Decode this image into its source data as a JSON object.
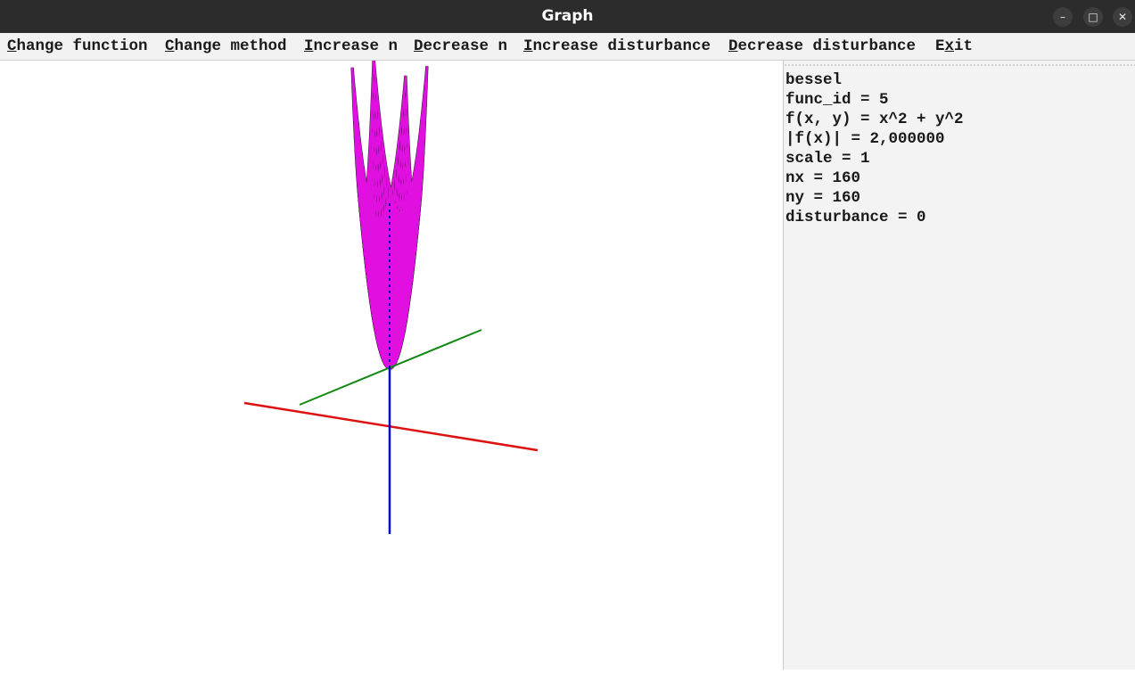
{
  "window": {
    "title": "Graph",
    "controls": [
      "minimize",
      "maximize",
      "close"
    ]
  },
  "menu": {
    "items": [
      {
        "mnemonic": "C",
        "rest": "hange function"
      },
      {
        "mnemonic": "C",
        "rest": "hange method"
      },
      {
        "mnemonic": "I",
        "rest": "ncrease n"
      },
      {
        "mnemonic": "D",
        "rest": "ecrease n"
      },
      {
        "mnemonic": "I",
        "rest": "ncrease disturbance"
      },
      {
        "mnemonic": "D",
        "rest": "ecrease disturbance"
      },
      {
        "prefix": "E",
        "mnemonic": "x",
        "rest": "it"
      }
    ]
  },
  "info": {
    "lines": [
      "bessel",
      "func_id = 5",
      "f(x, y) = x^2 + y^2",
      "|f(x)| = 2,000000",
      "scale = 1",
      "nx = 160",
      "ny = 160",
      "disturbance = 0"
    ]
  },
  "colors": {
    "surface_fill": "#e010e0",
    "surface_edge": "#1a0a1a",
    "axis_x": "#dd1111",
    "axis_y": "#118811",
    "axis_z": "#0000cc",
    "titlebar": "#2c2c2c",
    "menubar": "#f2f2f2",
    "panel": "#f3f3f3"
  }
}
